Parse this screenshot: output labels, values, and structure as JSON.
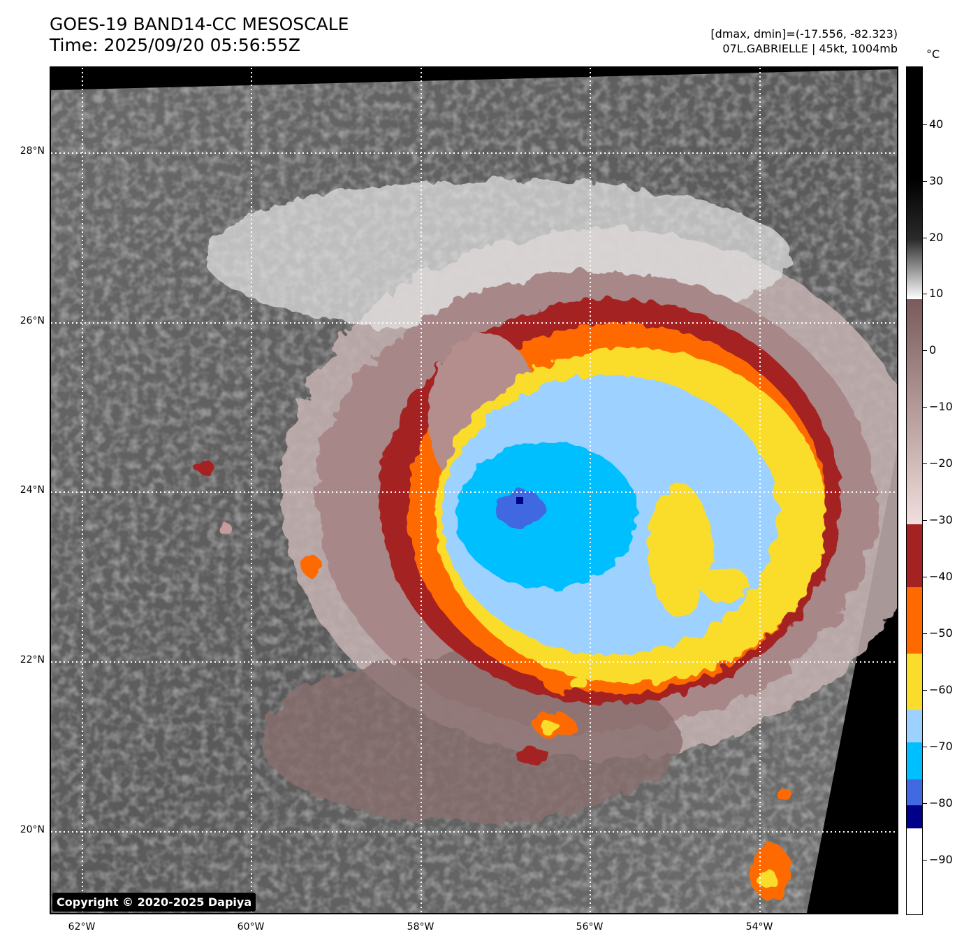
{
  "title": {
    "line1": "GOES-19 BAND14-CC MESOSCALE",
    "line2": "Time: 2025/09/20 05:56:55Z"
  },
  "info": {
    "line1": "[dmax, dmin]=(-17.556, -82.323)",
    "line2": "07L.GABRIELLE | 45kt, 1004mb"
  },
  "copyright": "Copyright © 2020-2025 Dapiya",
  "lat_labels": [
    "28°N",
    "26°N",
    "24°N",
    "22°N",
    "20°N"
  ],
  "lon_labels": [
    "62°W",
    "60°W",
    "58°W",
    "56°W",
    "54°W"
  ],
  "colorbar": {
    "unit": "°C",
    "ticks": [
      "40",
      "30",
      "20",
      "10",
      "0",
      "−10",
      "−20",
      "−30",
      "−40",
      "−50",
      "−60",
      "−70",
      "−80",
      "−90"
    ],
    "colors": {
      "hot_black": "#000000",
      "gray_light": "#ffffff",
      "rose_top": "#7a5a5a",
      "rose_bottom": "#f2dede",
      "dark_red": "#a52222",
      "orange": "#ff6a00",
      "yellow": "#fadc2c",
      "light_blue": "#9dd1ff",
      "cyan": "#00bfff",
      "royal_blue": "#4169e1",
      "navy": "#00008b",
      "white_cold": "#ffffff"
    }
  }
}
